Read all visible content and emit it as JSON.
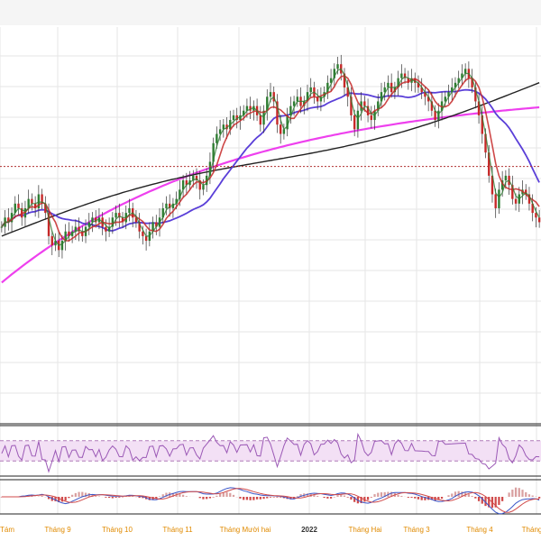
{
  "chart_data": {
    "type": "candlestick",
    "grid": true,
    "x_tick_labels": [
      "Tám",
      "Tháng 9",
      "Tháng 10",
      "Tháng 11",
      "Tháng Mười hai",
      "2022",
      "Tháng Hai",
      "Tháng 3",
      "Tháng 4",
      "Tháng"
    ],
    "x_tick_highlight": "2022",
    "price": {
      "reference_level": 0.55,
      "ohlc_close_series": [
        0.42,
        0.44,
        0.43,
        0.45,
        0.47,
        0.46,
        0.44,
        0.46,
        0.48,
        0.47,
        0.46,
        0.49,
        0.47,
        0.45,
        0.4,
        0.38,
        0.39,
        0.37,
        0.39,
        0.41,
        0.4,
        0.41,
        0.42,
        0.41,
        0.4,
        0.42,
        0.43,
        0.44,
        0.43,
        0.44,
        0.42,
        0.41,
        0.42,
        0.44,
        0.45,
        0.44,
        0.43,
        0.45,
        0.46,
        0.44,
        0.43,
        0.41,
        0.4,
        0.39,
        0.41,
        0.43,
        0.42,
        0.44,
        0.46,
        0.47,
        0.46,
        0.47,
        0.48,
        0.5,
        0.52,
        0.51,
        0.52,
        0.53,
        0.52,
        0.5,
        0.51,
        0.53,
        0.56,
        0.6,
        0.62,
        0.63,
        0.64,
        0.63,
        0.65,
        0.66,
        0.65,
        0.66,
        0.67,
        0.68,
        0.67,
        0.68,
        0.66,
        0.64,
        0.67,
        0.7,
        0.71,
        0.69,
        0.64,
        0.62,
        0.63,
        0.66,
        0.68,
        0.69,
        0.7,
        0.68,
        0.69,
        0.71,
        0.72,
        0.7,
        0.69,
        0.7,
        0.71,
        0.73,
        0.74,
        0.76,
        0.77,
        0.75,
        0.72,
        0.7,
        0.66,
        0.63,
        0.67,
        0.69,
        0.68,
        0.66,
        0.65,
        0.67,
        0.69,
        0.71,
        0.72,
        0.73,
        0.71,
        0.72,
        0.74,
        0.75,
        0.74,
        0.73,
        0.74,
        0.73,
        0.72,
        0.71,
        0.7,
        0.69,
        0.67,
        0.65,
        0.67,
        0.69,
        0.7,
        0.71,
        0.72,
        0.73,
        0.74,
        0.75,
        0.76,
        0.74,
        0.72,
        0.69,
        0.66,
        0.62,
        0.58,
        0.53,
        0.49,
        0.46,
        0.5,
        0.52,
        0.53,
        0.51,
        0.48,
        0.47,
        0.49,
        0.5,
        0.49,
        0.47,
        0.45,
        0.44,
        0.43
      ]
    },
    "rsi_panel": {
      "upper_band": 70,
      "lower_band": 30,
      "ylim": [
        0,
        100
      ]
    },
    "macd_panel": {
      "zero_line": 0
    }
  },
  "colors": {
    "ma_fast": "#2e7d32",
    "ma_mid": "#c62828",
    "ma_50": "#5a3fd8",
    "ma_100": "#222222",
    "ma_200": "#ee40ee",
    "candle_up": "#2e7d32",
    "candle_down": "#c62828",
    "rsi_line": "#9b59b6",
    "rsi_band_fill": "#f3e0f5",
    "macd_line": "#3a56c8",
    "signal_line": "#d04a4a",
    "axis_label": "#e08a00",
    "grid": "#e6e6e6"
  }
}
